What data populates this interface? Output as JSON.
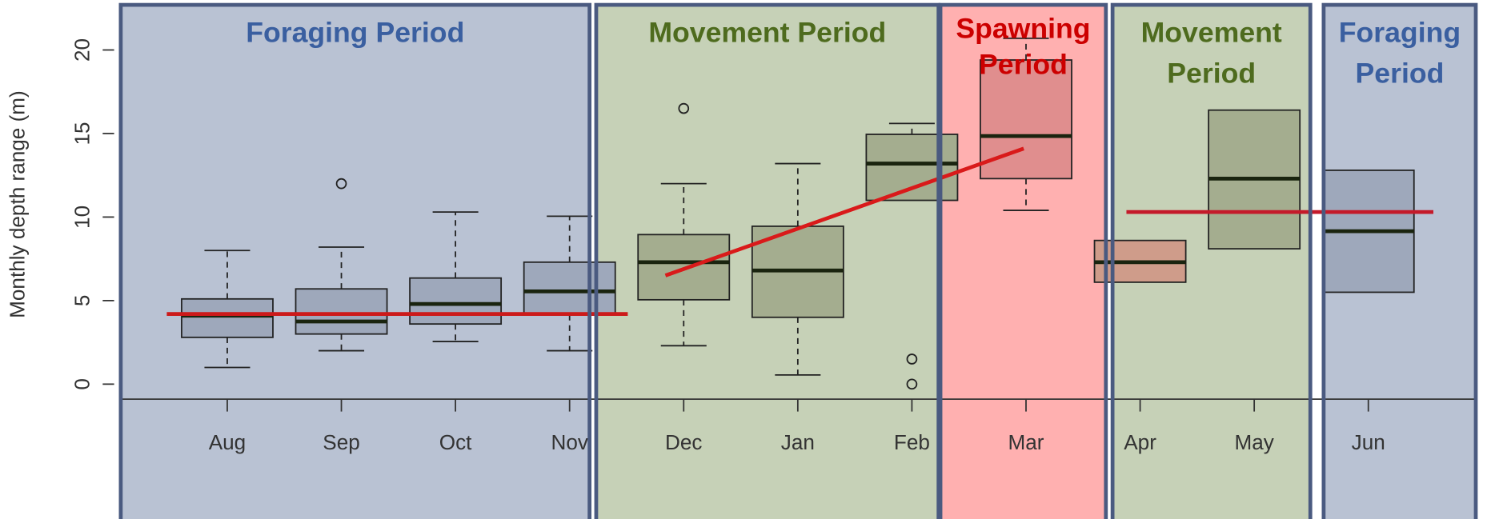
{
  "chart_data": {
    "type": "box",
    "ylabel": "Monthly depth range (m)",
    "categories": [
      "Aug",
      "Sep",
      "Oct",
      "Nov",
      "Dec",
      "Jan",
      "Feb",
      "Mar",
      "Apr",
      "May",
      "Jun"
    ],
    "low": [
      1.0,
      2.0,
      2.55,
      2.0,
      2.3,
      0.55,
      11.0,
      10.4,
      6.1,
      8.1,
      5.5
    ],
    "q1": [
      2.8,
      3.0,
      3.6,
      4.15,
      5.05,
      4.0,
      11.0,
      12.3,
      6.1,
      8.1,
      5.5
    ],
    "median": [
      4.1,
      3.75,
      4.8,
      5.55,
      7.3,
      6.8,
      13.2,
      14.85,
      7.3,
      12.3,
      9.15
    ],
    "q3": [
      5.1,
      5.7,
      6.35,
      7.3,
      8.95,
      9.45,
      14.95,
      19.4,
      8.6,
      16.4,
      12.8
    ],
    "high": [
      8.0,
      8.2,
      10.3,
      10.05,
      12.0,
      13.2,
      15.6,
      20.7,
      8.6,
      16.4,
      12.8
    ],
    "outliers": [
      [],
      [
        12.0
      ],
      [],
      [],
      [
        16.5
      ],
      [],
      [
        1.5,
        0
      ],
      [],
      [],
      [],
      []
    ],
    "colors": [
      "#9ea8bb",
      "#9ea8bb",
      "#9ea8bb",
      "#9ea8bb",
      "#a4ad8f",
      "#a4ad8f",
      "#a4ad8f",
      "#e08e8e",
      "#cf9c8a",
      "#a4ad8f",
      "#9ea8bb"
    ],
    "ylim": [
      -0.9,
      22.7
    ],
    "yticks": [
      0,
      5,
      10,
      15,
      20
    ],
    "trend_lines": [
      {
        "color": "#cc1a1a",
        "x": [
          -0.53,
          3.51
        ],
        "y": [
          4.2,
          4.2
        ]
      },
      {
        "color": "#d91a1a",
        "x": [
          3.84,
          6.98
        ],
        "y": [
          6.5,
          14.1
        ]
      },
      {
        "color": "#c41a2a",
        "x": [
          7.88,
          10.57
        ],
        "y": [
          10.3,
          10.3
        ]
      }
    ],
    "periods": [
      {
        "lines": [
          "Foraging Period"
        ],
        "color": "#b9c2d3",
        "text_color": "#3a5fa0"
      },
      {
        "lines": [
          "Movement Period"
        ],
        "color": "#c6d1b7",
        "text_color": "#4e6b1e"
      },
      {
        "lines": [
          "Spawning",
          "Period"
        ],
        "color": "#ffb0b0",
        "text_color": "#cc0000"
      },
      {
        "lines": [
          "Movement",
          "Period"
        ],
        "color": "#c6d1b7",
        "text_color": "#4e6b1e"
      },
      {
        "lines": [
          "Foraging",
          "Period"
        ],
        "color": "#b9c2d3",
        "text_color": "#3a5fa0"
      }
    ]
  }
}
